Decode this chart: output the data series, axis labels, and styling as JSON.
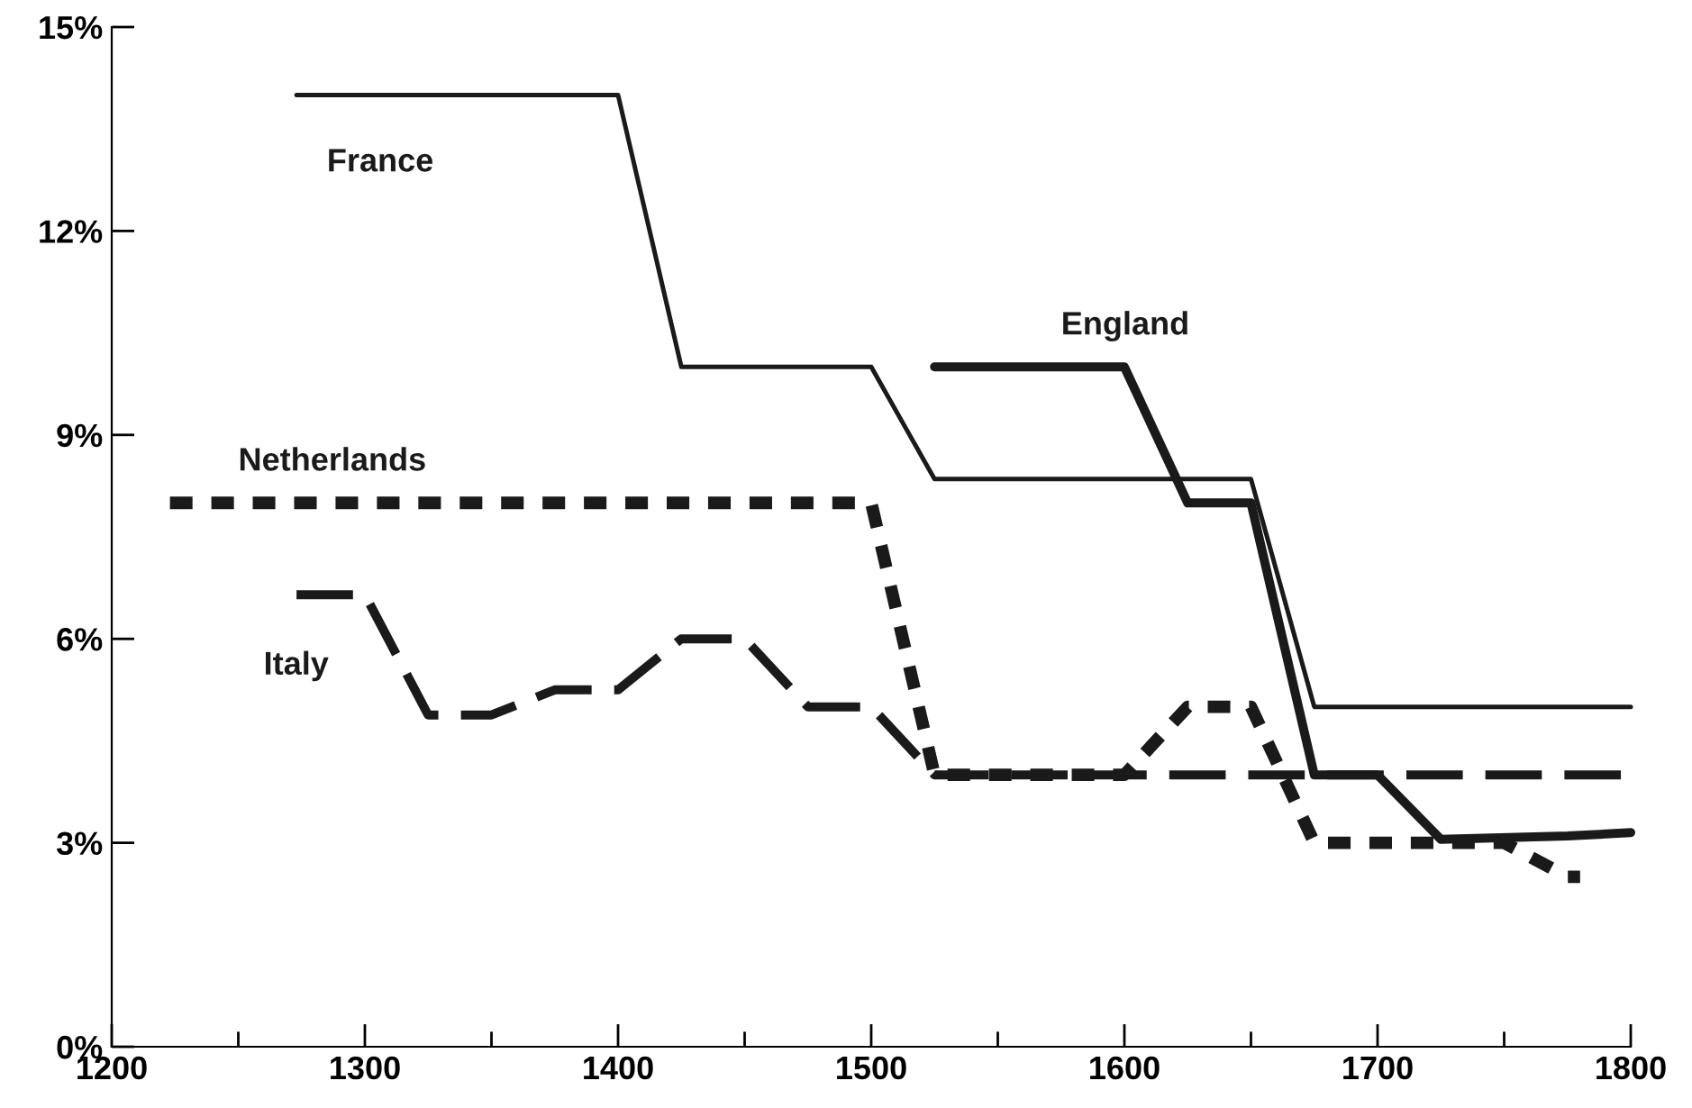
{
  "chart_data": {
    "type": "line",
    "xlim": [
      1200,
      1800
    ],
    "xticks": [
      1200,
      1300,
      1400,
      1500,
      1600,
      1700,
      1800
    ],
    "ylim": [
      0,
      15
    ],
    "yticks": [
      {
        "value": 0,
        "label": "0%"
      },
      {
        "value": 3,
        "label": "3%"
      },
      {
        "value": 6,
        "label": "6%"
      },
      {
        "value": 9,
        "label": "9%"
      },
      {
        "value": 12,
        "label": "12%"
      },
      {
        "value": 15,
        "label": "15%"
      }
    ],
    "grid": false,
    "legend": false,
    "series": [
      {
        "name": "France",
        "color": "#1a1a1a",
        "line_style": "solid",
        "x": [
          1273,
          1400,
          1425,
          1500,
          1525,
          1650,
          1675,
          1800
        ],
        "values": [
          14,
          14,
          10,
          10,
          8.35,
          8.35,
          5,
          5
        ]
      },
      {
        "name": "England",
        "color": "#1a1a1a",
        "line_style": "solid",
        "x": [
          1525,
          1600,
          1625,
          1650,
          1675,
          1700,
          1725,
          1775,
          1800
        ],
        "values": [
          10,
          10,
          8,
          8,
          4,
          4,
          3.05,
          3.1,
          3.15
        ]
      },
      {
        "name": "Netherlands",
        "color": "#1a1a1a",
        "line_style": "dotted",
        "x": [
          1223,
          1500,
          1525,
          1600,
          1625,
          1650,
          1675,
          1750,
          1775,
          1780
        ],
        "values": [
          8,
          8,
          4,
          4,
          5,
          5,
          3,
          3,
          2.5,
          2.5
        ]
      },
      {
        "name": "Italy",
        "color": "#1a1a1a",
        "line_style": "dashed",
        "x": [
          1273,
          1300,
          1325,
          1350,
          1375,
          1400,
          1425,
          1450,
          1475,
          1500,
          1525,
          1800
        ],
        "values": [
          6.65,
          6.65,
          4.88,
          4.88,
          5.25,
          5.25,
          6,
          6,
          5,
          5,
          4,
          4
        ]
      }
    ]
  }
}
